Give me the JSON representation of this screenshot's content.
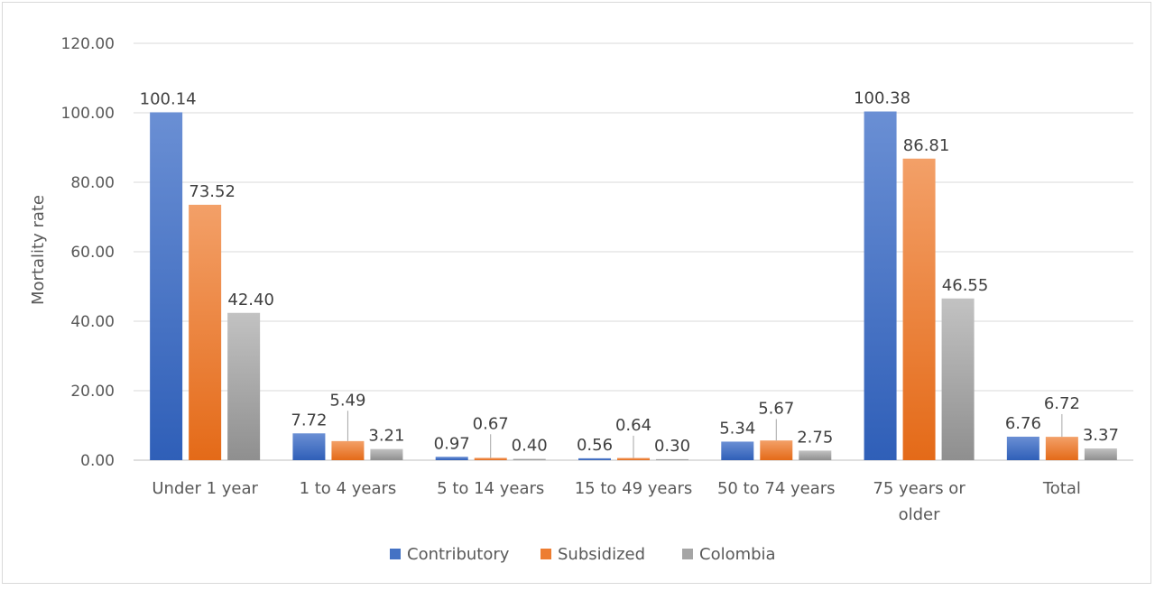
{
  "chart_data": {
    "type": "bar",
    "title": "",
    "xlabel": "",
    "ylabel": "Mortality rate",
    "ylim": [
      0,
      120
    ],
    "ytick_labels": [
      "0.00",
      "20.00",
      "40.00",
      "60.00",
      "80.00",
      "100.00",
      "120.00"
    ],
    "grid": true,
    "legend_position": "bottom",
    "categories": [
      [
        "Under 1 year"
      ],
      [
        "1 to 4 years"
      ],
      [
        "5 to 14 years"
      ],
      [
        "15 to 49 years"
      ],
      [
        "50 to 74 years"
      ],
      [
        "75 years or",
        "older"
      ],
      [
        "Total"
      ]
    ],
    "series": [
      {
        "name": "Contributory",
        "color": "#4472c4",
        "values": [
          100.14,
          7.72,
          0.97,
          0.56,
          5.34,
          100.38,
          6.76
        ],
        "labels": [
          "100.14",
          "7.72",
          "0.97",
          "0.56",
          "5.34",
          "100.38",
          "6.76"
        ]
      },
      {
        "name": "Subsidized",
        "color": "#ed7d31",
        "values": [
          73.52,
          5.49,
          0.67,
          0.64,
          5.67,
          86.81,
          6.72
        ],
        "labels": [
          "73.52",
          "5.49",
          "0.67",
          "0.64",
          "5.67",
          "86.81",
          "6.72"
        ]
      },
      {
        "name": "Colombia",
        "color": "#a5a5a5",
        "values": [
          42.4,
          3.21,
          0.4,
          0.3,
          2.75,
          46.55,
          3.37
        ],
        "labels": [
          "42.40",
          "3.21",
          "0.40",
          "0.30",
          "2.75",
          "46.55",
          "3.37"
        ]
      }
    ]
  }
}
